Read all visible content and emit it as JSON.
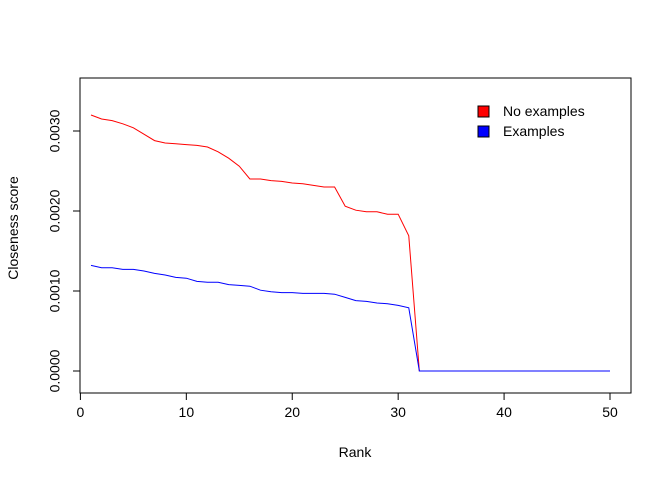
{
  "chart_data": {
    "type": "line",
    "title": "",
    "xlabel": "Rank",
    "ylabel": "Closeness score",
    "xlim": [
      0,
      50
    ],
    "ylim": [
      -0.0001,
      0.0036
    ],
    "xticks": [
      0,
      10,
      20,
      30,
      40,
      50
    ],
    "xtick_labels": [
      "0",
      "10",
      "20",
      "30",
      "40",
      "50"
    ],
    "yticks": [
      0.0,
      0.001,
      0.002,
      0.003
    ],
    "ytick_labels": [
      "0.0000",
      "0.0010",
      "0.0020",
      "0.0030"
    ],
    "grid": false,
    "legend": {
      "position": "top-right"
    },
    "x": [
      1,
      2,
      3,
      4,
      5,
      6,
      7,
      8,
      9,
      10,
      11,
      12,
      13,
      14,
      15,
      16,
      17,
      18,
      19,
      20,
      21,
      22,
      23,
      24,
      25,
      26,
      27,
      28,
      29,
      30,
      31,
      32,
      33,
      34,
      35,
      36,
      37,
      38,
      39,
      40,
      41,
      42,
      43,
      44,
      45,
      46,
      47,
      48,
      49,
      50
    ],
    "series": [
      {
        "name": "No examples",
        "color": "#ff0000",
        "values": [
          0.0032,
          0.00315,
          0.00313,
          0.00309,
          0.00304,
          0.00296,
          0.00288,
          0.00285,
          0.00284,
          0.00283,
          0.00282,
          0.0028,
          0.00274,
          0.00266,
          0.00256,
          0.0024,
          0.0024,
          0.00238,
          0.00237,
          0.00235,
          0.00234,
          0.00232,
          0.0023,
          0.0023,
          0.00206,
          0.00201,
          0.00199,
          0.00199,
          0.00196,
          0.00196,
          0.00169,
          0.0,
          0.0,
          0.0,
          0.0,
          0.0,
          0.0,
          0.0,
          0.0,
          0.0,
          0.0,
          0.0,
          0.0,
          0.0,
          0.0,
          0.0,
          0.0,
          0.0,
          0.0,
          0.0
        ]
      },
      {
        "name": "Examples",
        "color": "#0000ff",
        "values": [
          0.00132,
          0.00129,
          0.00129,
          0.00127,
          0.00127,
          0.00125,
          0.00122,
          0.0012,
          0.00117,
          0.00116,
          0.00112,
          0.00111,
          0.00111,
          0.00108,
          0.00107,
          0.00106,
          0.00101,
          0.00099,
          0.00098,
          0.00098,
          0.00097,
          0.00097,
          0.00097,
          0.00096,
          0.00092,
          0.00088,
          0.00087,
          0.00085,
          0.00084,
          0.00082,
          0.00079,
          0.0,
          0.0,
          0.0,
          0.0,
          0.0,
          0.0,
          0.0,
          0.0,
          0.0,
          0.0,
          0.0,
          0.0,
          0.0,
          0.0,
          0.0,
          0.0,
          0.0,
          0.0,
          0.0
        ]
      }
    ]
  }
}
